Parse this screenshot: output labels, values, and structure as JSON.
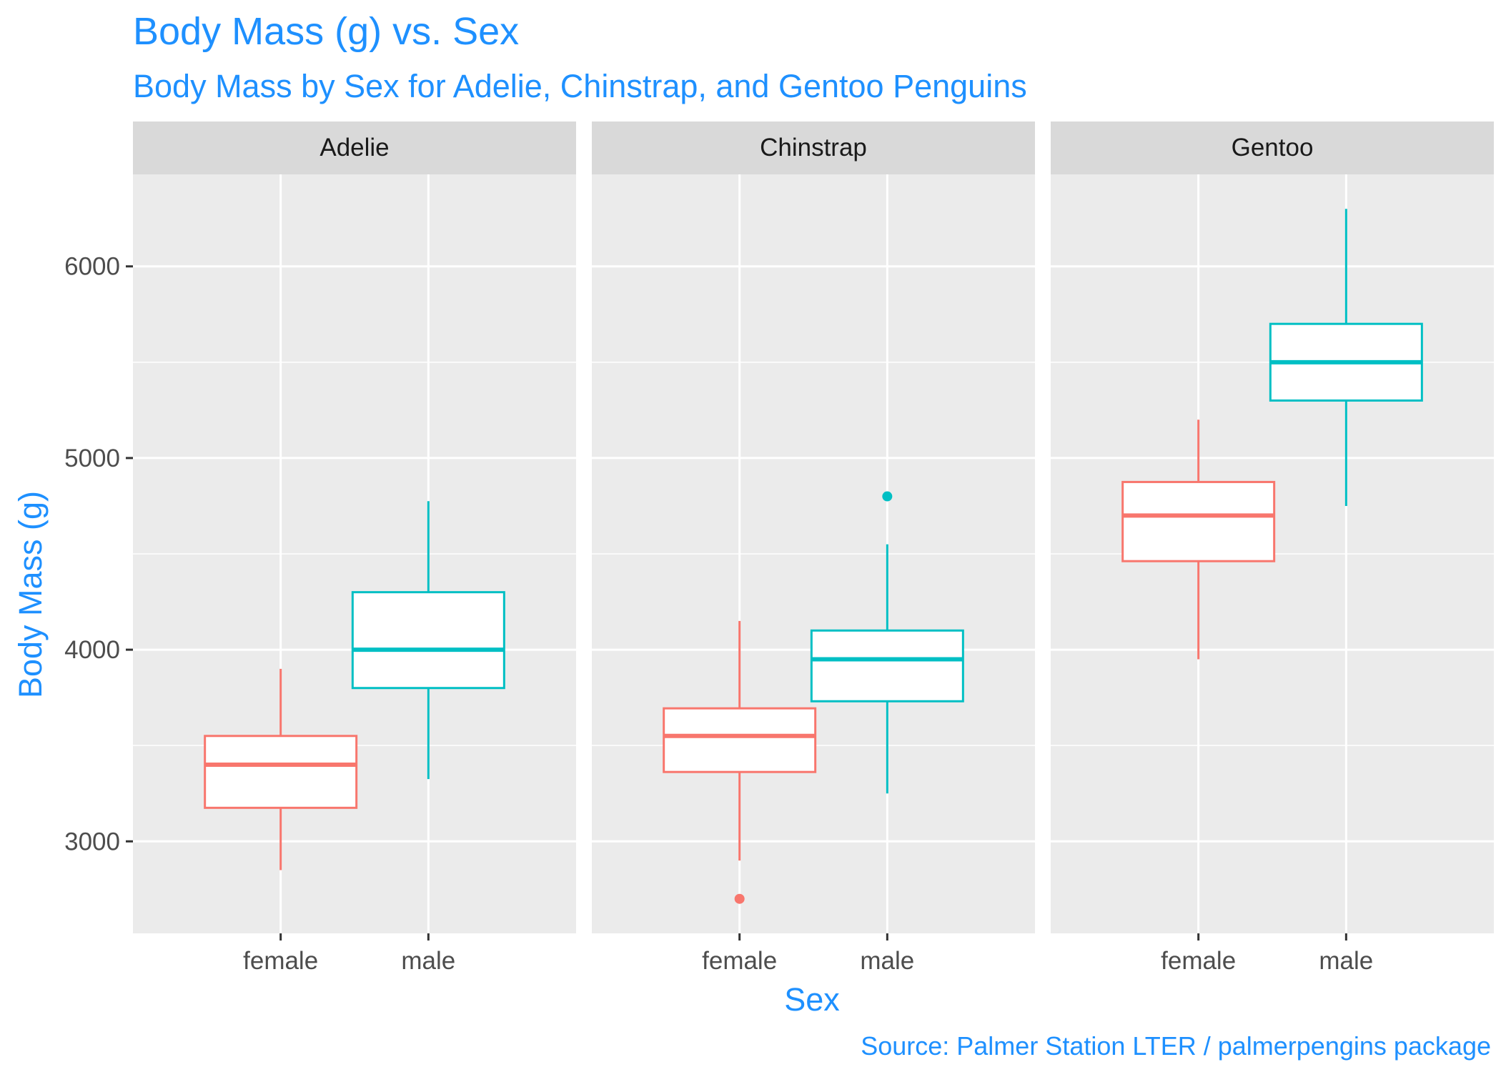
{
  "chart_data": {
    "type": "boxplot",
    "title": "Body Mass (g) vs. Sex",
    "subtitle": "Body Mass by Sex for Adelie, Chinstrap, and Gentoo Penguins",
    "xlabel": "Sex",
    "ylabel": "Body Mass (g)",
    "caption": "Source: Palmer Station LTER / palmerpengins package",
    "ylim": [
      2520,
      6480
    ],
    "yticks": [
      3000,
      4000,
      5000,
      6000
    ],
    "yminor": [
      3500,
      4500,
      5500
    ],
    "categories": [
      "female",
      "male"
    ],
    "colors": {
      "female": "#f8766d",
      "male": "#00bfc4"
    },
    "panel_bg": "#ebebeb",
    "strip_bg": "#d9d9d9",
    "grid": true,
    "facets": [
      {
        "name": "Adelie",
        "boxes": [
          {
            "sex": "female",
            "min": 2850,
            "q1": 3175,
            "median": 3400,
            "q3": 3550,
            "max": 3900,
            "outliers": []
          },
          {
            "sex": "male",
            "min": 3325,
            "q1": 3800,
            "median": 4000,
            "q3": 4300,
            "max": 4775,
            "outliers": []
          }
        ]
      },
      {
        "name": "Chinstrap",
        "boxes": [
          {
            "sex": "female",
            "min": 2900,
            "q1": 3362,
            "median": 3550,
            "q3": 3694,
            "max": 4150,
            "outliers": [
              2700
            ]
          },
          {
            "sex": "male",
            "min": 3250,
            "q1": 3731,
            "median": 3950,
            "q3": 4100,
            "max": 4550,
            "outliers": [
              4800
            ]
          }
        ]
      },
      {
        "name": "Gentoo",
        "boxes": [
          {
            "sex": "female",
            "min": 3950,
            "q1": 4462,
            "median": 4700,
            "q3": 4875,
            "max": 5200,
            "outliers": []
          },
          {
            "sex": "male",
            "min": 4750,
            "q1": 5300,
            "median": 5500,
            "q3": 5700,
            "max": 6300,
            "outliers": []
          }
        ]
      }
    ]
  }
}
